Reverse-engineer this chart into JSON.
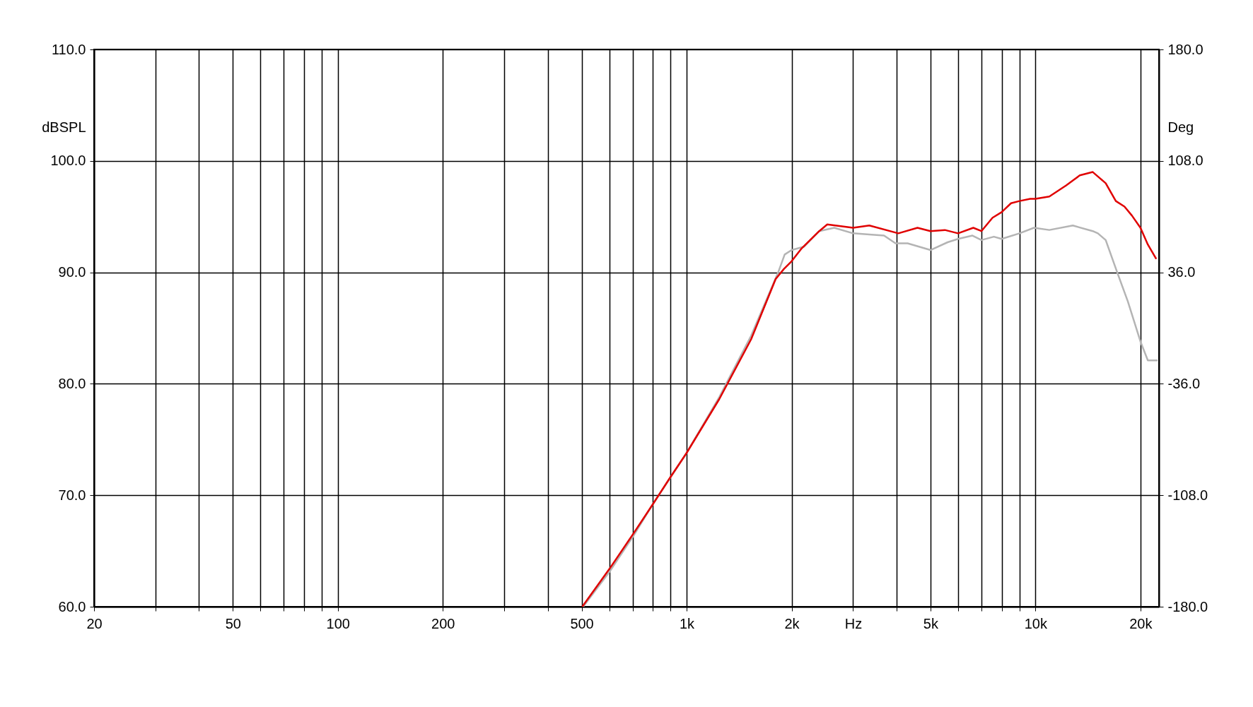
{
  "chart_data": {
    "type": "line",
    "ylabel": "dBSPL",
    "y2label": "Deg",
    "log": "x",
    "grid": true,
    "line_style": "solid",
    "xlim": [
      20,
      22600
    ],
    "xticks": [
      20,
      {
        "value": 30,
        "label": null
      },
      {
        "value": 40,
        "label": null
      },
      50,
      {
        "value": 60,
        "label": null
      },
      {
        "value": 70,
        "label": null
      },
      {
        "value": 80,
        "label": null
      },
      {
        "value": 90,
        "label": null
      },
      100,
      200,
      {
        "value": 300,
        "label": null
      },
      {
        "value": 400,
        "label": null
      },
      500,
      {
        "value": 600,
        "label": null
      },
      {
        "value": 700,
        "label": null
      },
      {
        "value": 800,
        "label": null
      },
      {
        "value": 900,
        "label": null
      },
      {
        "value": 1000,
        "label": "1k"
      },
      {
        "value": 2000,
        "label": "2k"
      },
      {
        "value": 3000,
        "label": "Hz"
      },
      {
        "value": 4000,
        "label": null
      },
      {
        "value": 5000,
        "label": "5k"
      },
      {
        "value": 6000,
        "label": null
      },
      {
        "value": 7000,
        "label": null
      },
      {
        "value": 8000,
        "label": null
      },
      {
        "value": 9000,
        "label": null
      },
      {
        "value": 10000,
        "label": "10k"
      },
      {
        "value": 20000,
        "label": "20k"
      }
    ],
    "ylim": [
      60,
      110
    ],
    "yticks": [
      {
        "value": 60,
        "label": "60.0"
      },
      {
        "value": 70,
        "label": "70.0"
      },
      {
        "value": 80,
        "label": "80.0"
      },
      {
        "value": 90,
        "label": "90.0"
      },
      {
        "value": 100,
        "label": "100.0"
      },
      {
        "value": 110,
        "label": "110.0"
      }
    ],
    "y2lim": [
      -180,
      180
    ],
    "y2ticks": [
      {
        "value": -180,
        "label": "-180.0"
      },
      {
        "value": -108,
        "label": "-108.0"
      },
      {
        "value": -36,
        "label": "-36.0"
      },
      {
        "value": 36,
        "label": "36.0"
      },
      {
        "value": 108,
        "label": "108.0"
      },
      {
        "value": 180,
        "label": "180.0"
      }
    ],
    "series": [
      {
        "color": "#b4b4b4",
        "x": [
          505,
          600,
          705,
          800,
          1000,
          1240,
          1530,
          1830,
          1910,
          2000,
          2170,
          2400,
          2650,
          3000,
          3340,
          3680,
          3970,
          4300,
          5000,
          5600,
          6000,
          6600,
          7000,
          7600,
          8000,
          9000,
          9900,
          10960,
          12800,
          14600,
          15100,
          15900,
          17200,
          18400,
          20000,
          21000,
          22400
        ],
        "values": [
          60.0,
          63.1,
          66.4,
          69.2,
          73.8,
          78.8,
          84.3,
          90.0,
          91.6,
          92.0,
          92.3,
          93.7,
          94.0,
          93.5,
          93.4,
          93.3,
          92.6,
          92.6,
          92.0,
          92.7,
          93.0,
          93.3,
          92.9,
          93.2,
          93.0,
          93.5,
          94.0,
          93.8,
          94.2,
          93.7,
          93.5,
          92.9,
          89.9,
          87.4,
          83.8,
          82.1,
          82.1
        ]
      },
      {
        "color": "#e00000",
        "x": [
          502,
          601,
          705,
          804,
          893,
          1000,
          1239,
          1531,
          1800,
          1900,
          2000,
          2130,
          2400,
          2530,
          3000,
          3340,
          4045,
          4590,
          5000,
          5500,
          6000,
          6635,
          7000,
          7534,
          8000,
          8511,
          9000,
          9660,
          10000,
          10960,
          12250,
          13400,
          14600,
          15100,
          15900,
          17000,
          18000,
          18900,
          20000,
          21000,
          22200
        ],
        "values": [
          60.0,
          63.4,
          66.6,
          69.3,
          71.5,
          73.8,
          78.6,
          84.0,
          89.4,
          90.3,
          91.0,
          92.1,
          93.7,
          94.3,
          94.0,
          94.2,
          93.5,
          94.0,
          93.7,
          93.8,
          93.5,
          94.0,
          93.7,
          94.9,
          95.4,
          96.2,
          96.4,
          96.6,
          96.6,
          96.8,
          97.8,
          98.7,
          99.0,
          98.6,
          98.0,
          96.4,
          95.9,
          95.1,
          94.0,
          92.5,
          91.2
        ]
      }
    ]
  }
}
